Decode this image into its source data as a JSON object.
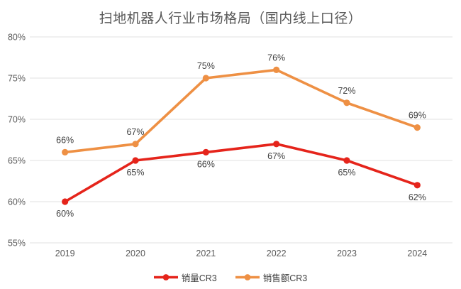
{
  "title": "扫地机器人行业市场格局（国内线上口径）",
  "chart_data": {
    "type": "line",
    "categories": [
      "2019",
      "2020",
      "2021",
      "2022",
      "2023",
      "2024"
    ],
    "series": [
      {
        "name": "销量CR3",
        "color": "#e5241b",
        "values": [
          60,
          65,
          66,
          67,
          65,
          62
        ],
        "label_position": "below"
      },
      {
        "name": "销售额CR3",
        "color": "#ee9044",
        "values": [
          66,
          67,
          75,
          76,
          72,
          69
        ],
        "label_position": "above"
      }
    ],
    "title": "扫地机器人行业市场格局（国内线上口径）",
    "xlabel": "",
    "ylabel": "",
    "ylim": [
      55,
      80
    ],
    "ytick_step": 5,
    "ytick_labels": [
      "55%",
      "60%",
      "65%",
      "70%",
      "75%",
      "80%"
    ],
    "data_label_suffix": "%",
    "data_labels": true,
    "grid": "horizontal",
    "legend_position": "bottom"
  },
  "colors": {
    "background": "#ffffff",
    "gridline": "#e0e0e0",
    "axis_text": "#595959",
    "data_label_text": "#404040",
    "title_text": "#595959",
    "series_red": "#e5241b",
    "series_orange": "#ee9044"
  }
}
